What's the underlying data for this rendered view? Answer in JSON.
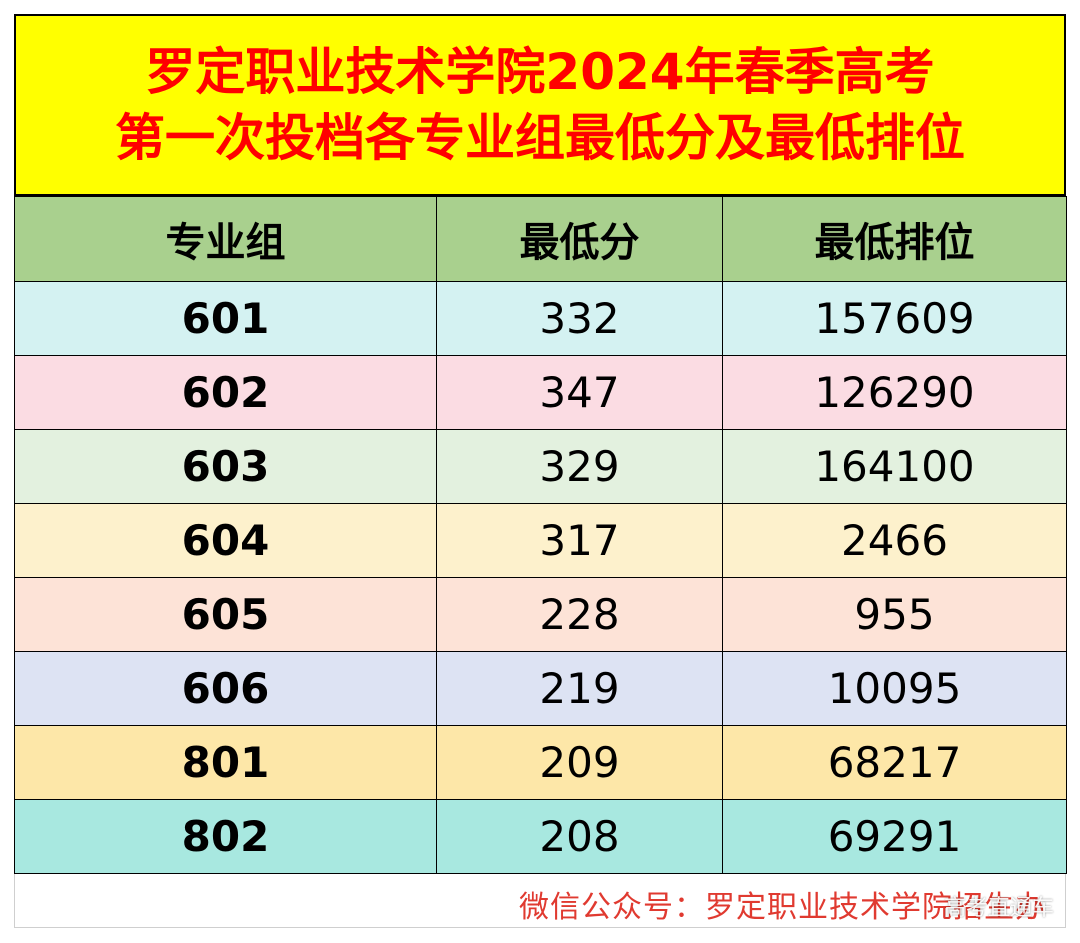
{
  "title": {
    "line1": "罗定职业技术学院2024年春季高考",
    "line2": "第一次投档各专业组最低分及最低排位"
  },
  "table": {
    "headers": [
      "专业组",
      "最低分",
      "最低排位"
    ],
    "rows": [
      {
        "group": "601",
        "min_score": "332",
        "min_rank": "157609",
        "bg": "#d4f2f2"
      },
      {
        "group": "602",
        "min_score": "347",
        "min_rank": "126290",
        "bg": "#fbdce3"
      },
      {
        "group": "603",
        "min_score": "329",
        "min_rank": "164100",
        "bg": "#e3f1df"
      },
      {
        "group": "604",
        "min_score": "317",
        "min_rank": "2466",
        "bg": "#fdf1cc"
      },
      {
        "group": "605",
        "min_score": "228",
        "min_rank": "955",
        "bg": "#fde3d7"
      },
      {
        "group": "606",
        "min_score": "219",
        "min_rank": "10095",
        "bg": "#dde3f3"
      },
      {
        "group": "801",
        "min_score": "209",
        "min_rank": "68217",
        "bg": "#fde7a8"
      },
      {
        "group": "802",
        "min_score": "208",
        "min_rank": "69291",
        "bg": "#a8e8e0"
      }
    ]
  },
  "footer": {
    "text": "微信公众号：罗定职业技术学院招生办",
    "watermark": "高考直通车"
  },
  "colors": {
    "title_bg": "#ffff00",
    "title_text": "#ff0000",
    "header_bg": "#a9d08e",
    "footer_text": "#e03a30"
  }
}
